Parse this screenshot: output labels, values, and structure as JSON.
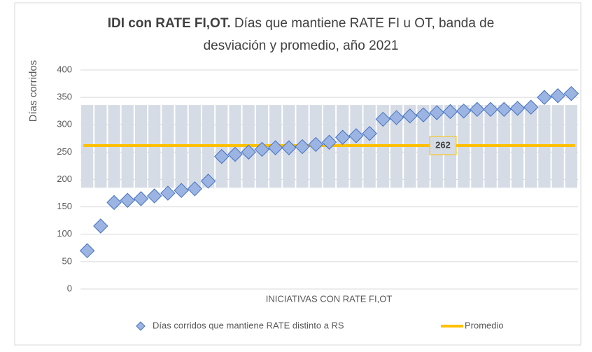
{
  "chart_data": {
    "type": "scatter",
    "title_bold": "IDI con RATE FI,OT.",
    "title_lines": [
      " Días que mantiene RATE FI u OT, banda de",
      "desviación y promedio, año 2021"
    ],
    "y_label": "Días corridos",
    "x_label": "INICIATIVAS CON RATE FI,OT",
    "categories": [
      null,
      null,
      null,
      null,
      null,
      null,
      null,
      null,
      null,
      null,
      null,
      null,
      null,
      null,
      null,
      null,
      null,
      null,
      null,
      null,
      null,
      null,
      null,
      null,
      null,
      null,
      null,
      null,
      null,
      null,
      null,
      null,
      null,
      null,
      null,
      null,
      null
    ],
    "series": [
      {
        "name": "Días corridos que mantiene RATE distinto a RS",
        "color": "#9cb4e2",
        "stroke": "#4472c4",
        "values": [
          70,
          115,
          158,
          162,
          165,
          170,
          175,
          180,
          183,
          197,
          242,
          246,
          250,
          255,
          258,
          258,
          260,
          264,
          268,
          277,
          280,
          284,
          310,
          313,
          316,
          318,
          322,
          324,
          325,
          328,
          328,
          328,
          330,
          332,
          350,
          353,
          357
        ]
      }
    ],
    "band": [
      185,
      336
    ],
    "band_color": "#d6dce5",
    "average": {
      "name": "Promedio",
      "value": 262,
      "color": "#ffc000"
    },
    "ylim": [
      0,
      400
    ],
    "yticks": [
      0,
      50,
      100,
      150,
      200,
      250,
      300,
      350,
      400
    ],
    "grid": true,
    "legend": "bottom"
  }
}
